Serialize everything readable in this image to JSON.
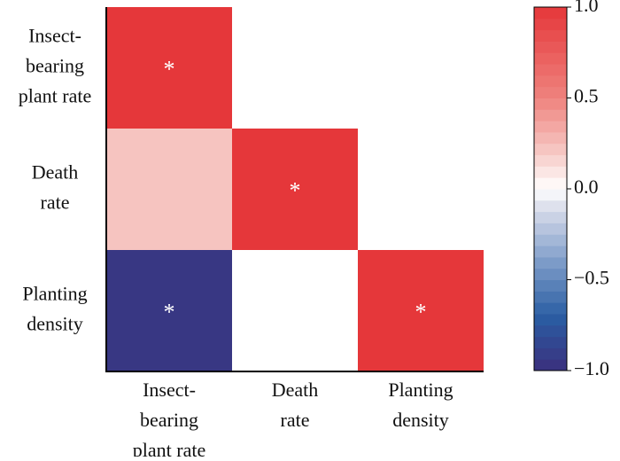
{
  "chart_data": {
    "type": "heatmap",
    "categories": [
      [
        "Insect-",
        "bearing",
        "plant rate"
      ],
      [
        "Death",
        "rate"
      ],
      [
        "Planting",
        "density"
      ]
    ],
    "values": [
      [
        1.0,
        null,
        null
      ],
      [
        0.22,
        1.0,
        null
      ],
      [
        -0.95,
        0.0,
        1.0
      ]
    ],
    "annotations": [
      [
        "*",
        null,
        null
      ],
      [
        null,
        "*",
        null
      ],
      [
        "*",
        null,
        "*"
      ]
    ],
    "zlim": [
      -1,
      1
    ],
    "zticks": [
      {
        "value": 1,
        "label": "1.0"
      },
      {
        "value": 0.5,
        "label": "0.5"
      },
      {
        "value": 0,
        "label": "0.0"
      },
      {
        "value": -0.5,
        "label": "−0.5"
      },
      {
        "value": -1,
        "label": "−1.0"
      }
    ],
    "colormap": [
      [
        -1,
        "#3b2f7d"
      ],
      [
        -0.7,
        "#2a5ea3"
      ],
      [
        -0.4,
        "#7e9cc9"
      ],
      [
        -0.1,
        "#dcdfec"
      ],
      [
        0,
        "#ffffff"
      ],
      [
        0.2,
        "#f6c9c5"
      ],
      [
        0.5,
        "#ef837e"
      ],
      [
        1,
        "#e5373a"
      ]
    ]
  }
}
